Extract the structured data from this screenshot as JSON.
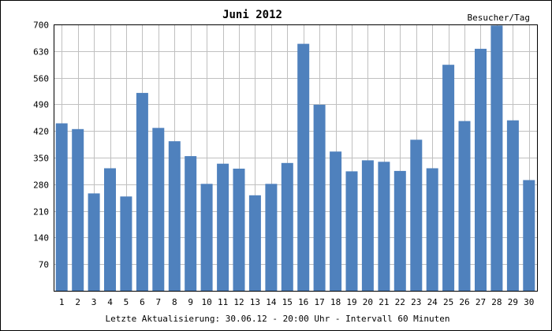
{
  "chart_data": {
    "type": "bar",
    "title": "Juni 2012",
    "ylabel": "Besucher/Tag",
    "footer": "Letzte Aktualisierung: 30.06.12 - 20:00 Uhr - Intervall 60 Minuten",
    "categories": [
      "1",
      "2",
      "3",
      "4",
      "5",
      "6",
      "7",
      "8",
      "9",
      "10",
      "11",
      "12",
      "13",
      "14",
      "15",
      "16",
      "17",
      "18",
      "19",
      "20",
      "21",
      "22",
      "23",
      "24",
      "25",
      "26",
      "27",
      "28",
      "29",
      "30"
    ],
    "values": [
      440,
      425,
      256,
      322,
      248,
      520,
      428,
      393,
      354,
      281,
      334,
      321,
      251,
      281,
      336,
      649,
      489,
      366,
      314,
      343,
      339,
      315,
      397,
      322,
      594,
      446,
      636,
      697,
      448,
      291
    ],
    "yticks": [
      "70",
      "140",
      "210",
      "280",
      "350",
      "420",
      "490",
      "560",
      "630",
      "700"
    ],
    "ylim": [
      0,
      700
    ],
    "grid": true,
    "bar_color": "#4f81bd"
  }
}
